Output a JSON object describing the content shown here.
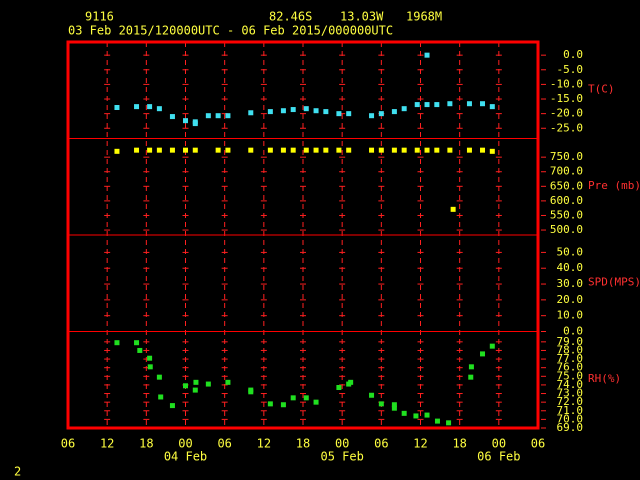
{
  "station": "9116",
  "lat": "82.46S",
  "lon": "13.03W",
  "elev": "1968M",
  "period": "03 Feb 2015/120000UTC - 06 Feb 2015/000000UTC",
  "page": "2",
  "x_axis": {
    "xlim": [
      0,
      72
    ],
    "xticks": [
      {
        "value": 0,
        "label": "06"
      },
      {
        "value": 6,
        "label": "12"
      },
      {
        "value": 12,
        "label": "18"
      },
      {
        "value": 18,
        "label": "00"
      },
      {
        "value": 24,
        "label": "06"
      },
      {
        "value": 30,
        "label": "12"
      },
      {
        "value": 36,
        "label": "18"
      },
      {
        "value": 42,
        "label": "00"
      },
      {
        "value": 48,
        "label": "06"
      },
      {
        "value": 54,
        "label": "12"
      },
      {
        "value": 60,
        "label": "18"
      },
      {
        "value": 66,
        "label": "00"
      },
      {
        "value": 72,
        "label": "06"
      }
    ],
    "dates": [
      {
        "value": 18,
        "label": "04 Feb"
      },
      {
        "value": 42,
        "label": "05 Feb"
      },
      {
        "value": 66,
        "label": "06 Feb"
      }
    ]
  },
  "chart_data": [
    {
      "type": "scatter",
      "y_label": "T(C)",
      "color": "#40e0f0",
      "ylim": [
        -28.5,
        4.5
      ],
      "yticks": [
        {
          "value": 0,
          "label": "0.0"
        },
        {
          "value": -5,
          "label": "-5.0"
        },
        {
          "value": -10,
          "label": "-10.0"
        },
        {
          "value": -15,
          "label": "-15.0"
        },
        {
          "value": -20,
          "label": "-20.0"
        },
        {
          "value": -25,
          "label": "-25.0"
        }
      ],
      "x": [
        7.5,
        10.5,
        12.5,
        14,
        16,
        18,
        19.5,
        19.5,
        21.5,
        23,
        24.5,
        28,
        31,
        33,
        34.5,
        36.5,
        38,
        39.5,
        41.5,
        43,
        46.5,
        48,
        50,
        51.5,
        53.5,
        55,
        55,
        56.5,
        58.5,
        61.5,
        63.5,
        65
      ],
      "values": [
        -17.9,
        -17.6,
        -17.6,
        -18.3,
        -21,
        -22.4,
        -23.4,
        -22.8,
        -20.7,
        -20.7,
        -20.7,
        -19.7,
        -19.3,
        -19,
        -18.6,
        -18.3,
        -19,
        -19.3,
        -20,
        -20,
        -20.7,
        -20,
        -19.3,
        -18.3,
        -16.9,
        -16.9,
        0,
        -16.9,
        -16.6,
        -16.6,
        -16.6,
        -17.6
      ]
    },
    {
      "type": "scatter",
      "y_label": "Pre (mb)",
      "color": "#ffff00",
      "ylim": [
        483,
        814
      ],
      "yticks": [
        {
          "value": 750,
          "label": "750.0"
        },
        {
          "value": 700,
          "label": "700.0"
        },
        {
          "value": 650,
          "label": "650.0"
        },
        {
          "value": 600,
          "label": "600.0"
        },
        {
          "value": 550,
          "label": "550.0"
        },
        {
          "value": 500,
          "label": "500.0"
        }
      ],
      "x": [
        7.5,
        10.5,
        12.5,
        14,
        16,
        18,
        19.5,
        23,
        24.5,
        28,
        31,
        33,
        34.5,
        36.5,
        38,
        39.5,
        41.5,
        43,
        46.5,
        48,
        50,
        51.5,
        53.5,
        55,
        56.5,
        58.5,
        59,
        61.5,
        63.5,
        65
      ],
      "values": [
        770,
        774,
        774,
        774,
        774,
        774,
        774,
        774,
        774,
        774,
        774,
        774,
        774,
        774,
        774,
        774,
        774,
        774,
        774,
        774,
        774,
        774,
        774,
        774,
        774,
        774,
        571,
        774,
        774,
        770
      ]
    },
    {
      "type": "scatter",
      "y_label": "SPD(MPS)",
      "color": "#ffff00",
      "ylim": [
        0,
        61
      ],
      "yticks": [
        {
          "value": 50,
          "label": "50.0"
        },
        {
          "value": 40,
          "label": "40.0"
        },
        {
          "value": 30,
          "label": "30.0"
        },
        {
          "value": 20,
          "label": "20.0"
        },
        {
          "value": 10,
          "label": "10.0"
        },
        {
          "value": 0,
          "label": "0.0"
        }
      ],
      "x": [],
      "values": []
    },
    {
      "type": "scatter",
      "y_label": "RH(%)",
      "color": "#20e020",
      "ylim": [
        69,
        80.2
      ],
      "yticks": [
        {
          "value": 79,
          "label": "79.0"
        },
        {
          "value": 78,
          "label": "78.0"
        },
        {
          "value": 77,
          "label": "77.0"
        },
        {
          "value": 76,
          "label": "76.0"
        },
        {
          "value": 75,
          "label": "75.0"
        },
        {
          "value": 74,
          "label": "74.0"
        },
        {
          "value": 73,
          "label": "73.0"
        },
        {
          "value": 72,
          "label": "72.0"
        },
        {
          "value": 71,
          "label": "71.0"
        },
        {
          "value": 70,
          "label": "70.0"
        },
        {
          "value": 69,
          "label": "69.0"
        }
      ],
      "x": [
        7.5,
        10.5,
        11,
        12.5,
        12.6,
        14,
        14.2,
        16,
        18,
        19.5,
        19.6,
        21.5,
        24.5,
        28,
        28,
        31,
        33,
        34.5,
        36.5,
        38,
        41.5,
        43,
        43.3,
        46.5,
        48,
        50,
        50,
        51.5,
        53.3,
        55,
        56.6,
        58.3,
        61.7,
        61.8,
        63.5,
        65
      ],
      "values": [
        78.9,
        78.9,
        78,
        77.1,
        76.1,
        74.9,
        72.6,
        71.6,
        73.9,
        73.4,
        74.3,
        74.1,
        74.3,
        73.4,
        73.2,
        71.8,
        71.7,
        72.5,
        72.5,
        72,
        73.7,
        74.1,
        74.3,
        72.8,
        71.8,
        71.3,
        71.7,
        70.7,
        70.4,
        70.5,
        69.8,
        69.6,
        74.9,
        76.1,
        77.6,
        78.5
      ]
    }
  ]
}
